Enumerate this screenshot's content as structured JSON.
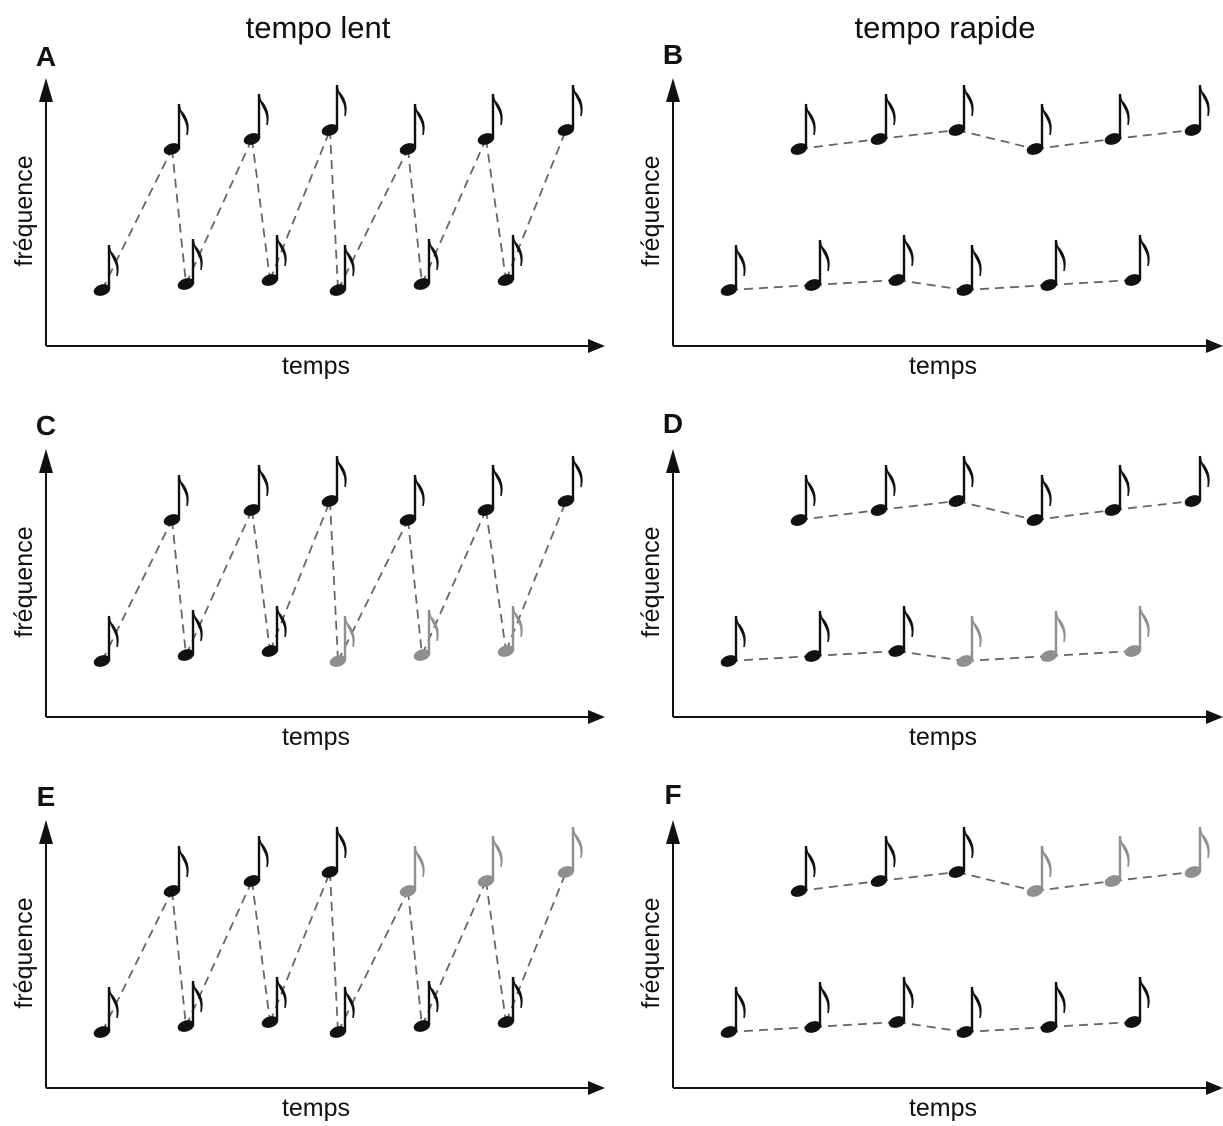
{
  "column_titles": {
    "left": "tempo lent",
    "right": "tempo rapide"
  },
  "axis_labels": {
    "x": "temps",
    "y": "fréquence"
  },
  "colors": {
    "black": "#111111",
    "gray": "#8f8f8f",
    "link": "#666666"
  },
  "panels": [
    {
      "id": "A",
      "label": "A",
      "tempo": "lent",
      "connection": "alternating",
      "notes": [
        {
          "level": "low",
          "color": "black"
        },
        {
          "level": "high",
          "color": "black"
        },
        {
          "level": "low",
          "color": "black"
        },
        {
          "level": "high",
          "color": "black"
        },
        {
          "level": "low",
          "color": "black"
        },
        {
          "level": "high",
          "color": "black"
        },
        {
          "level": "low",
          "color": "black"
        },
        {
          "level": "high",
          "color": "black"
        },
        {
          "level": "low",
          "color": "black"
        },
        {
          "level": "high",
          "color": "black"
        },
        {
          "level": "low",
          "color": "black"
        },
        {
          "level": "high",
          "color": "black"
        }
      ]
    },
    {
      "id": "B",
      "label": "B",
      "tempo": "rapide",
      "connection": "by_stream",
      "notes": [
        {
          "level": "low",
          "color": "black"
        },
        {
          "level": "high",
          "color": "black"
        },
        {
          "level": "low",
          "color": "black"
        },
        {
          "level": "high",
          "color": "black"
        },
        {
          "level": "low",
          "color": "black"
        },
        {
          "level": "high",
          "color": "black"
        },
        {
          "level": "low",
          "color": "black"
        },
        {
          "level": "high",
          "color": "black"
        },
        {
          "level": "low",
          "color": "black"
        },
        {
          "level": "high",
          "color": "black"
        },
        {
          "level": "low",
          "color": "black"
        },
        {
          "level": "high",
          "color": "black"
        }
      ]
    },
    {
      "id": "C",
      "label": "C",
      "tempo": "lent",
      "connection": "alternating",
      "notes": [
        {
          "level": "low",
          "color": "black"
        },
        {
          "level": "high",
          "color": "black"
        },
        {
          "level": "low",
          "color": "black"
        },
        {
          "level": "high",
          "color": "black"
        },
        {
          "level": "low",
          "color": "black"
        },
        {
          "level": "high",
          "color": "black"
        },
        {
          "level": "low",
          "color": "gray"
        },
        {
          "level": "high",
          "color": "black"
        },
        {
          "level": "low",
          "color": "gray"
        },
        {
          "level": "high",
          "color": "black"
        },
        {
          "level": "low",
          "color": "gray"
        },
        {
          "level": "high",
          "color": "black"
        }
      ]
    },
    {
      "id": "D",
      "label": "D",
      "tempo": "rapide",
      "connection": "by_stream",
      "notes": [
        {
          "level": "low",
          "color": "black"
        },
        {
          "level": "high",
          "color": "black"
        },
        {
          "level": "low",
          "color": "black"
        },
        {
          "level": "high",
          "color": "black"
        },
        {
          "level": "low",
          "color": "black"
        },
        {
          "level": "high",
          "color": "black"
        },
        {
          "level": "low",
          "color": "gray"
        },
        {
          "level": "high",
          "color": "black"
        },
        {
          "level": "low",
          "color": "gray"
        },
        {
          "level": "high",
          "color": "black"
        },
        {
          "level": "low",
          "color": "gray"
        },
        {
          "level": "high",
          "color": "black"
        }
      ]
    },
    {
      "id": "E",
      "label": "E",
      "tempo": "lent",
      "connection": "alternating",
      "notes": [
        {
          "level": "low",
          "color": "black"
        },
        {
          "level": "high",
          "color": "black"
        },
        {
          "level": "low",
          "color": "black"
        },
        {
          "level": "high",
          "color": "black"
        },
        {
          "level": "low",
          "color": "black"
        },
        {
          "level": "high",
          "color": "black"
        },
        {
          "level": "low",
          "color": "black"
        },
        {
          "level": "high",
          "color": "gray"
        },
        {
          "level": "low",
          "color": "black"
        },
        {
          "level": "high",
          "color": "gray"
        },
        {
          "level": "low",
          "color": "black"
        },
        {
          "level": "high",
          "color": "gray"
        }
      ]
    },
    {
      "id": "F",
      "label": "F",
      "tempo": "rapide",
      "connection": "by_stream",
      "notes": [
        {
          "level": "low",
          "color": "black"
        },
        {
          "level": "high",
          "color": "black"
        },
        {
          "level": "low",
          "color": "black"
        },
        {
          "level": "high",
          "color": "black"
        },
        {
          "level": "low",
          "color": "black"
        },
        {
          "level": "high",
          "color": "black"
        },
        {
          "level": "low",
          "color": "black"
        },
        {
          "level": "high",
          "color": "gray"
        },
        {
          "level": "low",
          "color": "black"
        },
        {
          "level": "high",
          "color": "gray"
        },
        {
          "level": "low",
          "color": "black"
        },
        {
          "level": "high",
          "color": "gray"
        }
      ]
    }
  ]
}
